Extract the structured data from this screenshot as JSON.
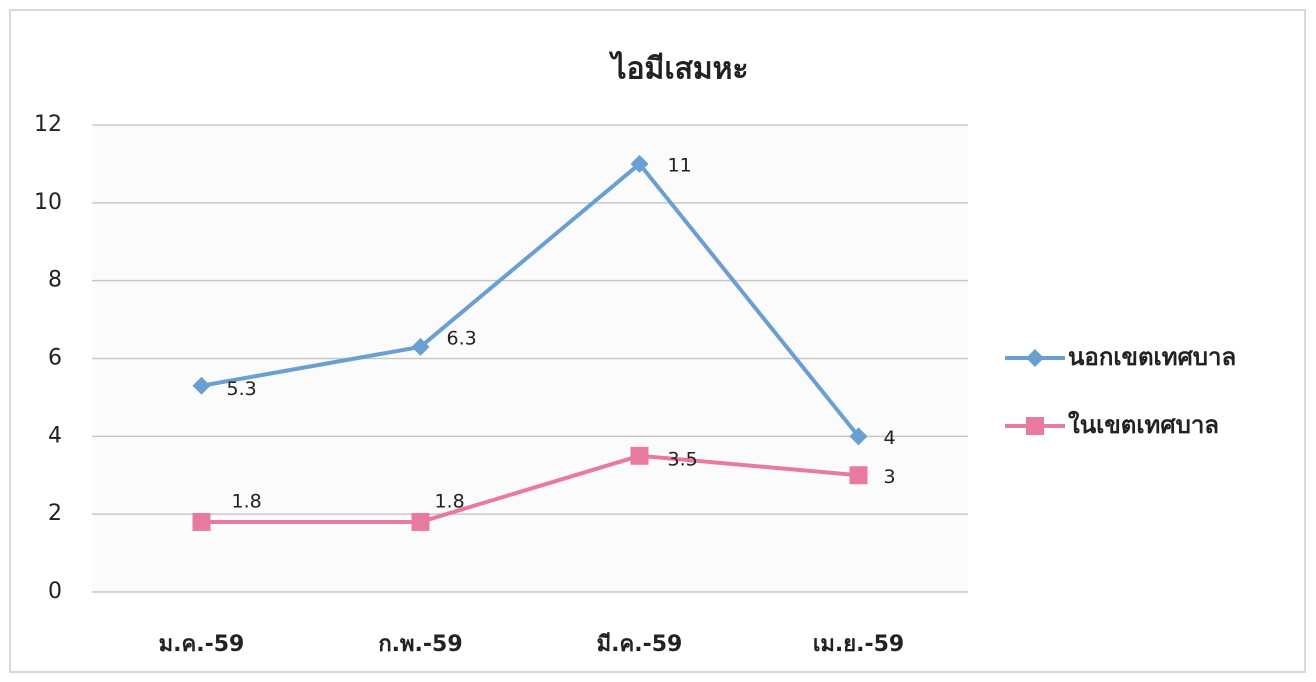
{
  "chart_data": {
    "type": "line",
    "title": "ไอมีเสมหะ",
    "categories": [
      "ม.ค.-59",
      "ก.พ.-59",
      "มี.ค.-59",
      "เม.ย.-59"
    ],
    "series": [
      {
        "name": "นอกเขตเทศบาล",
        "color": "#6a9fd2",
        "marker": "diamond",
        "values": [
          5.3,
          6.3,
          11,
          4
        ]
      },
      {
        "name": "ในเขตเทศบาล",
        "color": "#e97a9f",
        "marker": "square",
        "values": [
          1.8,
          1.8,
          3.5,
          3
        ]
      }
    ],
    "ylim": [
      0,
      12
    ],
    "yticks": [
      0,
      2,
      4,
      6,
      8,
      10,
      12
    ],
    "grid": true,
    "legend": "right"
  }
}
